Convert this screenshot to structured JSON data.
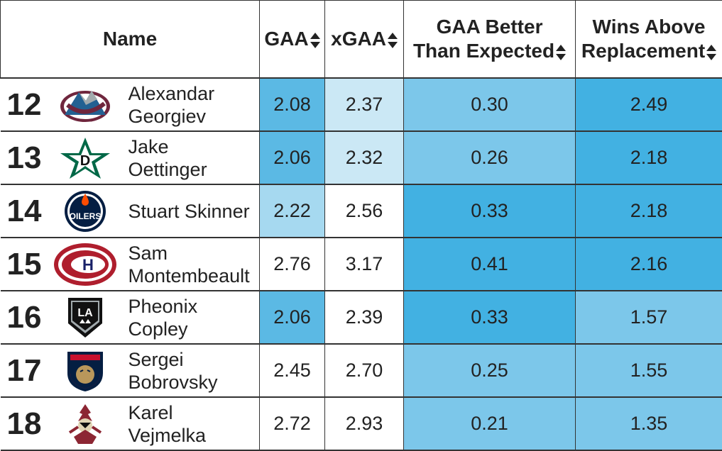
{
  "colors": {
    "shade_1": "#cbe8f5",
    "shade_2": "#a6d9f0",
    "shade_3": "#7cc7ea",
    "shade_4": "#5bb9e4",
    "shade_5": "#42b1e2"
  },
  "header": {
    "name": "Name",
    "gaa": "GAA",
    "xgaa": "xGAA",
    "gbte_line1": "GAA Better",
    "gbte_line2": "Than Expected",
    "war_line1": "Wins Above",
    "war_line2": "Replacement"
  },
  "rows": [
    {
      "rank": "12",
      "first": "Alexandar",
      "last": "Georgiev",
      "gaa": "2.08",
      "xgaa": "2.37",
      "gbte": "0.30",
      "war": "2.49",
      "logo_icon": "colorado-avalanche-logo-icon",
      "shade": [
        4,
        1,
        3,
        5
      ]
    },
    {
      "rank": "13",
      "first": "Jake",
      "last": "Oettinger",
      "gaa": "2.06",
      "xgaa": "2.32",
      "gbte": "0.26",
      "war": "2.18",
      "logo_icon": "dallas-stars-logo-icon",
      "shade": [
        4,
        1,
        3,
        5
      ]
    },
    {
      "rank": "14",
      "first": "Stuart Skinner",
      "last": "",
      "gaa": "2.22",
      "xgaa": "2.56",
      "gbte": "0.33",
      "war": "2.18",
      "logo_icon": "edmonton-oilers-logo-icon",
      "shade": [
        2,
        0,
        5,
        5
      ]
    },
    {
      "rank": "15",
      "first": "Sam",
      "last": "Montembeault",
      "gaa": "2.76",
      "xgaa": "3.17",
      "gbte": "0.41",
      "war": "2.16",
      "logo_icon": "montreal-canadiens-logo-icon",
      "shade": [
        0,
        0,
        5,
        5
      ]
    },
    {
      "rank": "16",
      "first": "Pheonix",
      "last": "Copley",
      "gaa": "2.06",
      "xgaa": "2.39",
      "gbte": "0.33",
      "war": "1.57",
      "logo_icon": "los-angeles-kings-logo-icon",
      "shade": [
        4,
        0,
        5,
        3
      ]
    },
    {
      "rank": "17",
      "first": "Sergei",
      "last": "Bobrovsky",
      "gaa": "2.45",
      "xgaa": "2.70",
      "gbte": "0.25",
      "war": "1.55",
      "logo_icon": "florida-panthers-logo-icon",
      "shade": [
        0,
        0,
        3,
        3
      ]
    },
    {
      "rank": "18",
      "first": "Karel",
      "last": "Vejmelka",
      "gaa": "2.72",
      "xgaa": "2.93",
      "gbte": "0.21",
      "war": "1.35",
      "logo_icon": "arizona-coyotes-logo-icon",
      "shade": [
        0,
        0,
        3,
        3
      ]
    }
  ]
}
